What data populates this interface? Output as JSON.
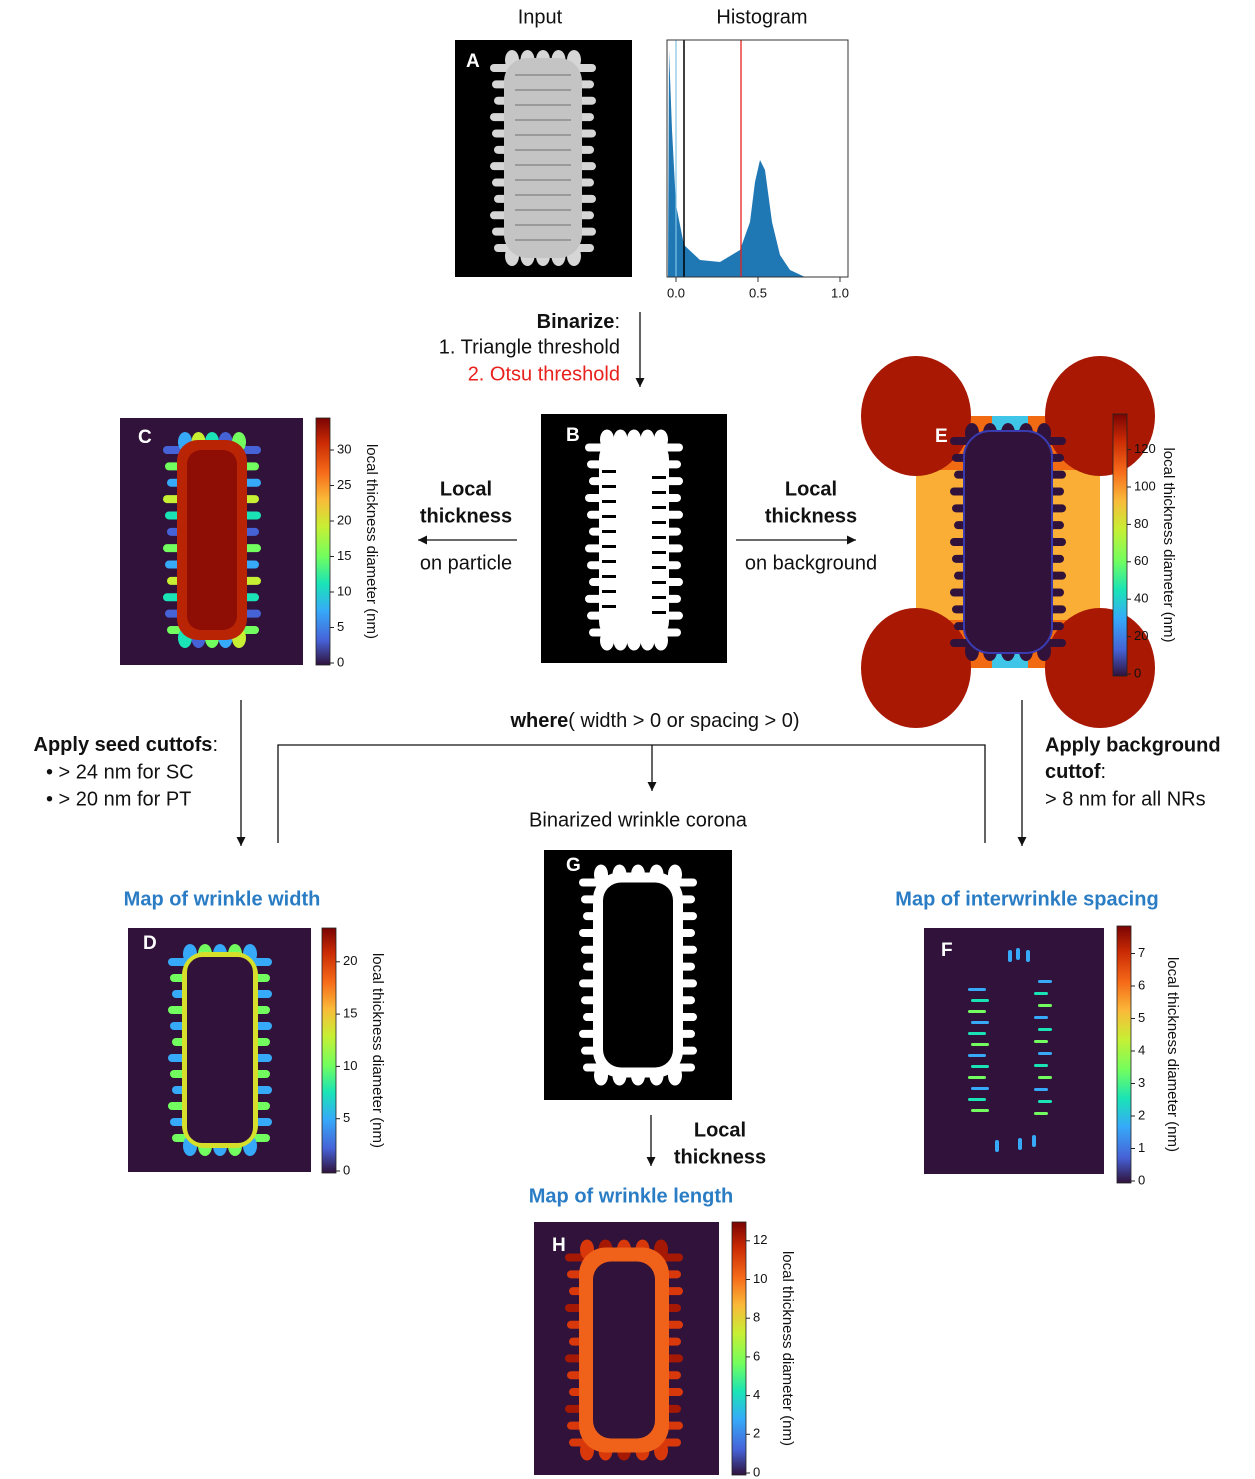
{
  "header": {
    "input": "Input",
    "histogram": "Histogram"
  },
  "panels": {
    "A": "A",
    "B": "B",
    "C": "C",
    "D": "D",
    "E": "E",
    "F": "F",
    "G": "G",
    "H": "H"
  },
  "histogram": {
    "xticks": [
      "0.0",
      "0.5",
      "1.0"
    ]
  },
  "binarize": {
    "title": "Binarize",
    "suffix": ":",
    "steps": [
      "1. Triangle threshold",
      "2. Otsu threshold"
    ]
  },
  "particle_step": {
    "lines": [
      "Local",
      "thickness"
    ],
    "sub": "on particle"
  },
  "background_step": {
    "lines": [
      "Local",
      "thickness"
    ],
    "sub": "on background"
  },
  "colorbars": {
    "label": "local thickness diameter (nm)",
    "C": [
      0,
      5,
      10,
      15,
      20,
      25,
      30
    ],
    "E": [
      0,
      20,
      40,
      60,
      80,
      100,
      120
    ],
    "D": [
      0,
      5,
      10,
      15,
      20
    ],
    "F": [
      0,
      1,
      2,
      3,
      4,
      5,
      6,
      7
    ],
    "H": [
      0,
      2,
      4,
      6,
      8,
      10,
      12
    ]
  },
  "where": {
    "keyword": "where",
    "condition": "( width > 0 or spacing > 0)"
  },
  "seed_cutoffs": {
    "title": "Apply seed cuttofs",
    "suffix": ":",
    "items": [
      "•  > 24 nm for SC",
      "•  > 20 nm for PT"
    ]
  },
  "background_cutoff": {
    "title_lines": [
      "Apply background",
      "cuttof"
    ],
    "suffix": ":",
    "note": "> 8 nm for all NRs"
  },
  "corona": {
    "title": "Binarized wrinkle corona"
  },
  "maps": {
    "width": "Map of wrinkle width",
    "spacing": "Map of interwrinkle spacing",
    "length": "Map of wrinkle length"
  },
  "length_step": {
    "lines": [
      "Local",
      "thickness"
    ]
  }
}
